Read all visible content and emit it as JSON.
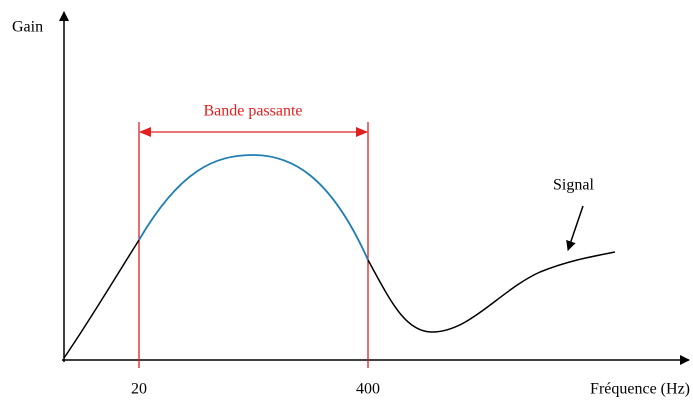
{
  "axes": {
    "y_label": "Gain",
    "x_label": "Fréquence (Hz)",
    "x_ticks": [
      "20",
      "400"
    ]
  },
  "annotations": {
    "band": "Bande passante",
    "curve": "Signal"
  }
}
